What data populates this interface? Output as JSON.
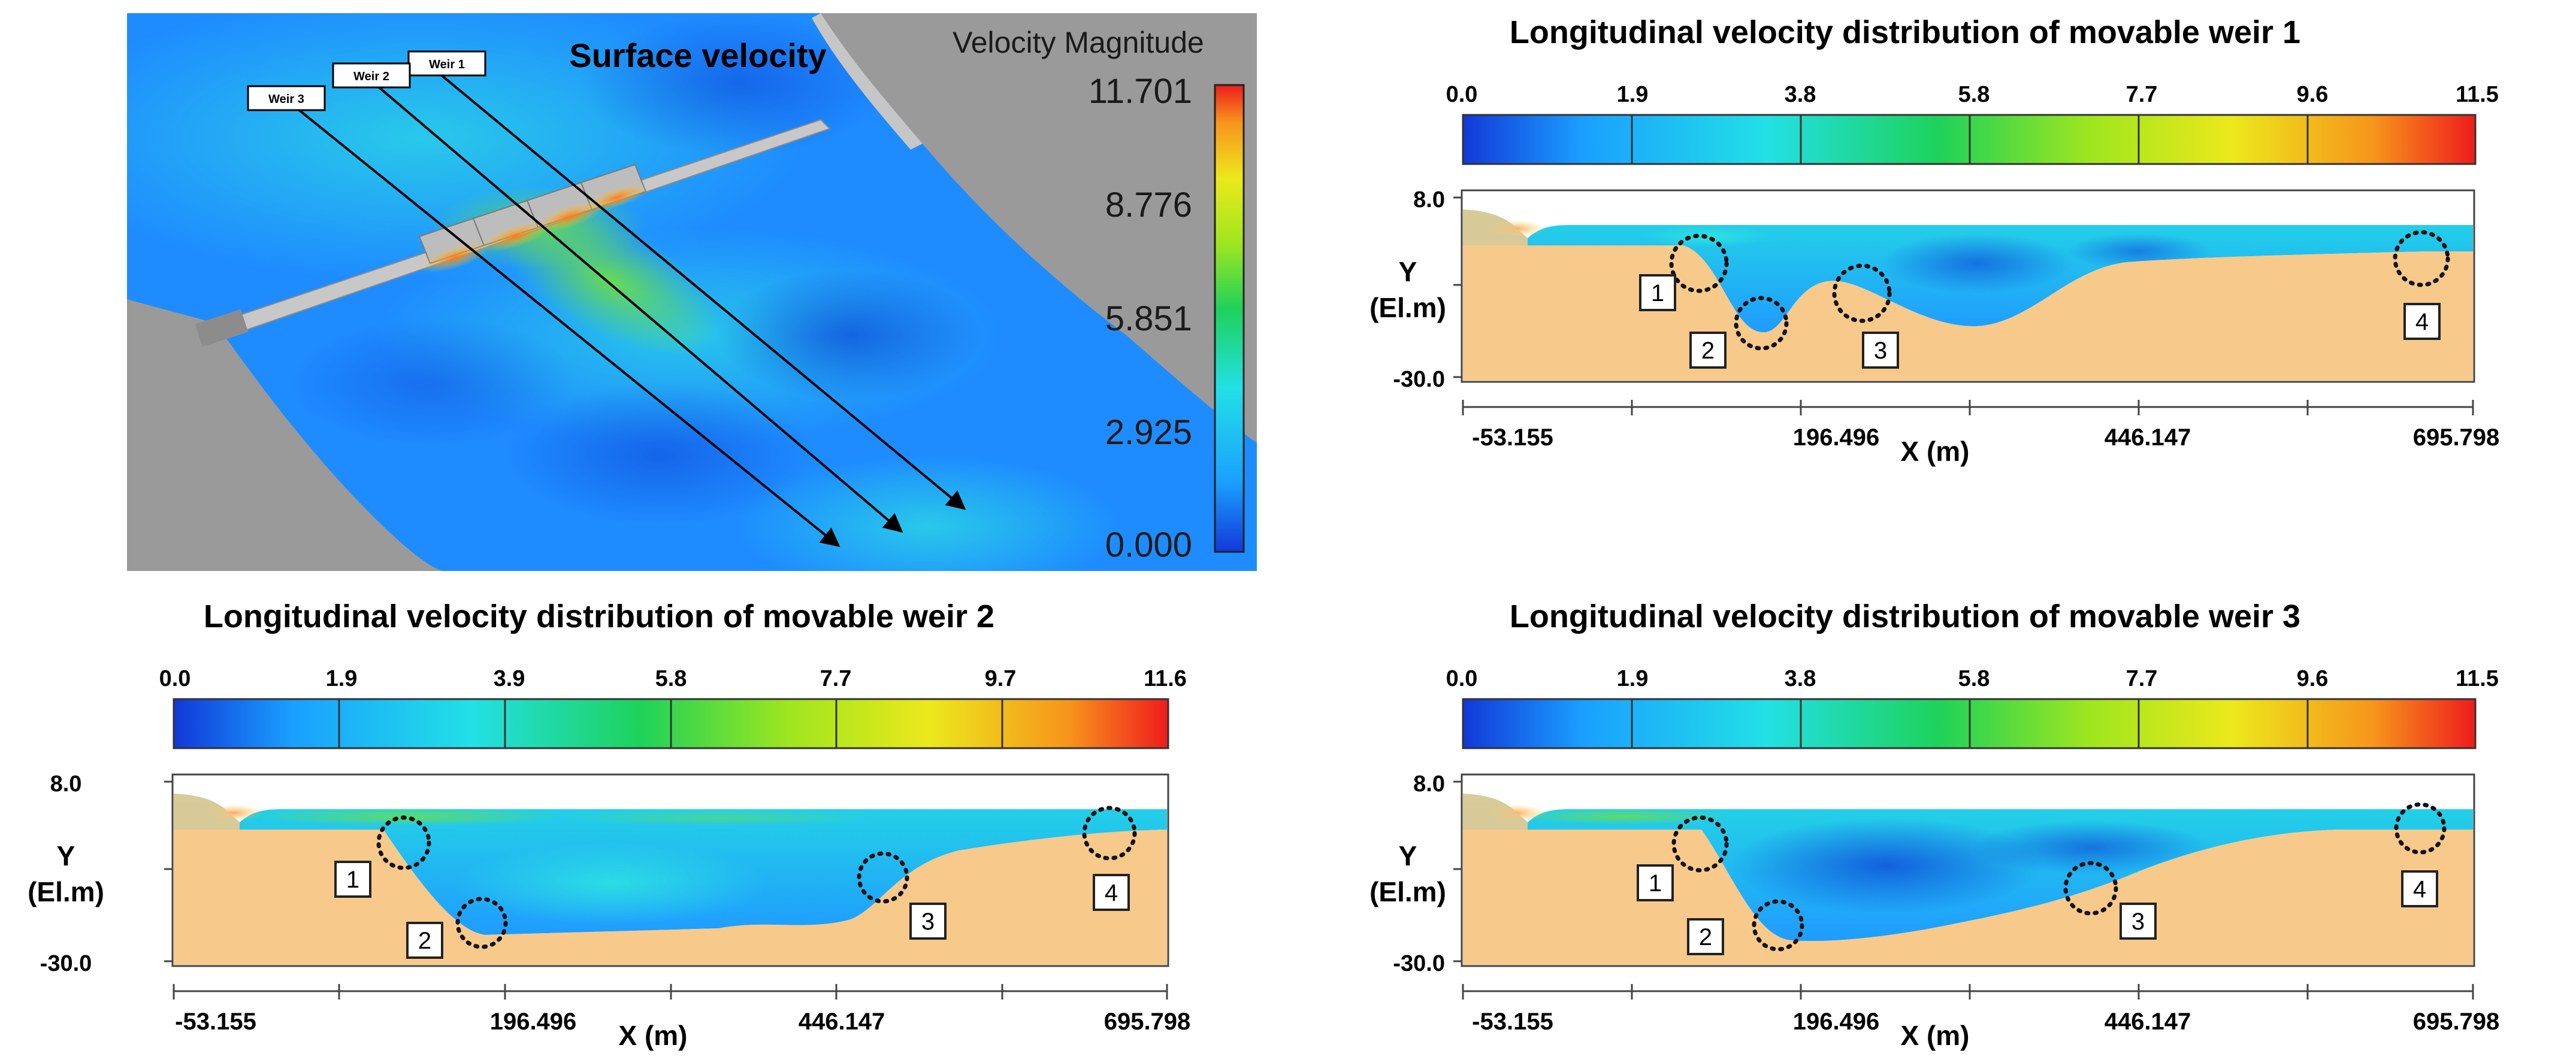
{
  "surface": {
    "title": "Surface velocity",
    "legend_title": "Velocity Magnitude",
    "legend_ticks": [
      "11.701",
      "8.776",
      "5.851",
      "2.925",
      "0.000"
    ],
    "weir_labels": [
      "Weir 1",
      "Weir 2",
      "Weir 3"
    ]
  },
  "panels": [
    {
      "title": "Longitudinal velocity distribution of movable weir 1",
      "colorbar_ticks": [
        "0.0",
        "1.9",
        "3.8",
        "5.8",
        "7.7",
        "9.6",
        "11.5"
      ],
      "y_label_top": "Y",
      "y_label_bottom": "(El.m)",
      "y_ticks": [
        "8.0",
        "-30.0"
      ],
      "x_ticks": [
        "-53.155",
        "196.496",
        "446.147",
        "695.798"
      ],
      "x_label": "X (m)",
      "markers": [
        "1",
        "2",
        "3",
        "4"
      ]
    },
    {
      "title": "Longitudinal velocity distribution of movable weir 2",
      "colorbar_ticks": [
        "0.0",
        "1.9",
        "3.9",
        "5.8",
        "7.7",
        "9.7",
        "11.6"
      ],
      "y_label_top": "Y",
      "y_label_bottom": "(El.m)",
      "y_ticks": [
        "8.0",
        "-30.0"
      ],
      "x_ticks": [
        "-53.155",
        "196.496",
        "446.147",
        "695.798"
      ],
      "x_label": "X (m)",
      "markers": [
        "1",
        "2",
        "3",
        "4"
      ]
    },
    {
      "title": "Longitudinal velocity distribution of movable weir 3",
      "colorbar_ticks": [
        "0.0",
        "1.9",
        "3.8",
        "5.8",
        "7.7",
        "9.6",
        "11.5"
      ],
      "y_label_top": "Y",
      "y_label_bottom": "(El.m)",
      "y_ticks": [
        "8.0",
        "-30.0"
      ],
      "x_ticks": [
        "-53.155",
        "196.496",
        "446.147",
        "695.798"
      ],
      "x_label": "X (m)",
      "markers": [
        "1",
        "2",
        "3",
        "4"
      ]
    }
  ],
  "colors": {
    "water_blue": "#1e8cff",
    "deep_blue": "#0a3cd0",
    "cyan": "#22d8e8",
    "ground": "#f7c98a",
    "land_gray": "#9a9a9a"
  }
}
